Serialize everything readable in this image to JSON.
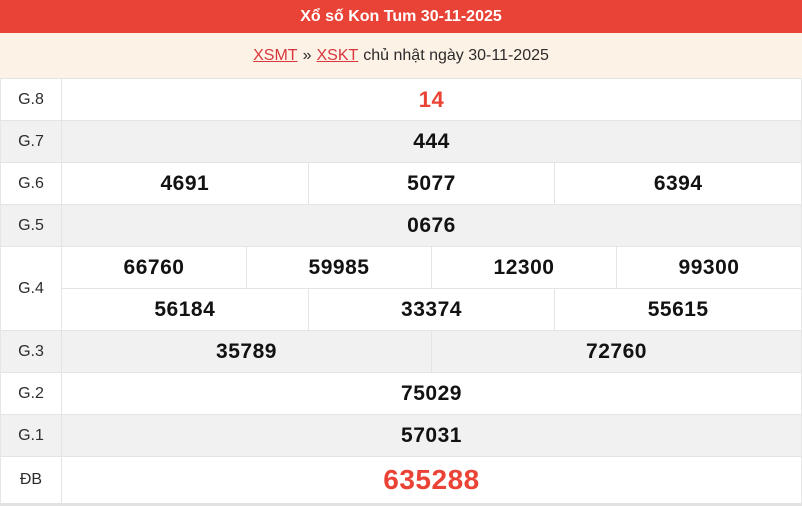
{
  "header": {
    "title": "Xổ số Kon Tum 30-11-2025"
  },
  "breadcrumb": {
    "links": [
      {
        "label": "XSMT"
      },
      {
        "label": "XSKT"
      }
    ],
    "separator": "»",
    "suffix": "chủ nhật ngày 30-11-2025"
  },
  "results": {
    "rows": [
      {
        "key": "g8",
        "label": "G.8",
        "highlight": true,
        "special": false,
        "lines": [
          [
            "14"
          ]
        ]
      },
      {
        "key": "g7",
        "label": "G.7",
        "highlight": false,
        "special": false,
        "lines": [
          [
            "444"
          ]
        ]
      },
      {
        "key": "g6",
        "label": "G.6",
        "highlight": false,
        "special": false,
        "lines": [
          [
            "4691",
            "5077",
            "6394"
          ]
        ]
      },
      {
        "key": "g5",
        "label": "G.5",
        "highlight": false,
        "special": false,
        "lines": [
          [
            "0676"
          ]
        ]
      },
      {
        "key": "g4",
        "label": "G.4",
        "highlight": false,
        "special": false,
        "lines": [
          [
            "66760",
            "59985",
            "12300",
            "99300"
          ],
          [
            "56184",
            "33374",
            "55615"
          ]
        ]
      },
      {
        "key": "g3",
        "label": "G.3",
        "highlight": false,
        "special": false,
        "lines": [
          [
            "35789",
            "72760"
          ]
        ]
      },
      {
        "key": "g2",
        "label": "G.2",
        "highlight": false,
        "special": false,
        "lines": [
          [
            "75029"
          ]
        ]
      },
      {
        "key": "g1",
        "label": "G.1",
        "highlight": false,
        "special": false,
        "lines": [
          [
            "57031"
          ]
        ]
      },
      {
        "key": "db",
        "label": "ĐB",
        "highlight": false,
        "special": true,
        "lines": [
          [
            "635288"
          ]
        ]
      }
    ]
  },
  "colors": {
    "header_bg": "#e94236",
    "header_text": "#ffffff",
    "breadcrumb_bg": "#fdf2e6",
    "link_red": "#d9363e",
    "accent_red": "#ea4335",
    "shaded_row": "#f1f1f1",
    "border": "#e4e4e4"
  }
}
